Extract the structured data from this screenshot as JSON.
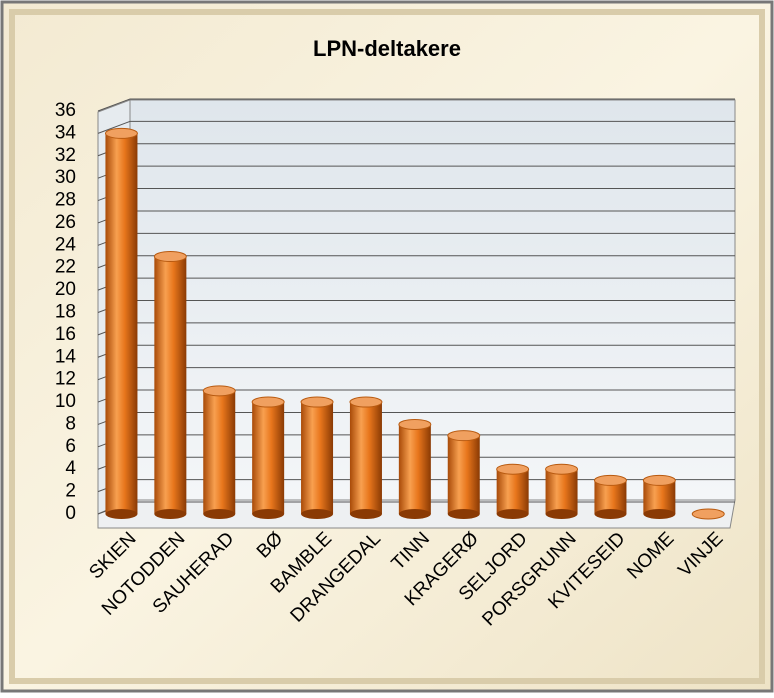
{
  "chart_data": {
    "type": "bar",
    "title": "LPN-deltakere",
    "categories": [
      "SKIEN",
      "NOTODDEN",
      "SAUHERAD",
      "BØ",
      "BAMBLE",
      "DRANGEDAL",
      "TINN",
      "KRAGERØ",
      "SELJORD",
      "PORSGRUNN",
      "KVITESEID",
      "NOME",
      "VINJE"
    ],
    "values": [
      34,
      23,
      11,
      10,
      10,
      10,
      8,
      7,
      4,
      4,
      3,
      3,
      0
    ],
    "color": "#e8761c",
    "ylim": [
      0,
      36
    ],
    "yticks": [
      0,
      2,
      4,
      6,
      8,
      10,
      12,
      14,
      16,
      18,
      20,
      22,
      24,
      26,
      28,
      30,
      32,
      34,
      36
    ],
    "grid": true
  }
}
